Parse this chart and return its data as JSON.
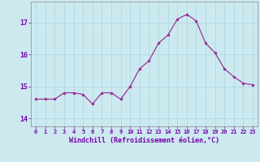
{
  "x": [
    0,
    1,
    2,
    3,
    4,
    5,
    6,
    7,
    8,
    9,
    10,
    11,
    12,
    13,
    14,
    15,
    16,
    17,
    18,
    19,
    20,
    21,
    22,
    23
  ],
  "y": [
    14.6,
    14.6,
    14.6,
    14.8,
    14.8,
    14.75,
    14.45,
    14.8,
    14.8,
    14.6,
    15.0,
    15.55,
    15.8,
    16.35,
    16.6,
    17.1,
    17.25,
    17.05,
    16.35,
    16.05,
    15.55,
    15.3,
    15.1,
    15.05
  ],
  "line_color": "#993399",
  "marker": ".",
  "marker_size": 3,
  "bg_color": "#cce9f0",
  "grid_color": "#aad4dc",
  "xlabel": "Windchill (Refroidissement éolien,°C)",
  "xlabel_color": "#7700aa",
  "tick_color": "#7700aa",
  "ylabel_ticks": [
    14,
    15,
    16,
    17
  ],
  "xlim": [
    -0.5,
    23.5
  ],
  "ylim": [
    13.75,
    17.65
  ],
  "xtick_labels": [
    "0",
    "1",
    "2",
    "3",
    "4",
    "5",
    "6",
    "7",
    "8",
    "9",
    "10",
    "11",
    "12",
    "13",
    "14",
    "15",
    "16",
    "17",
    "18",
    "19",
    "20",
    "21",
    "22",
    "23"
  ]
}
